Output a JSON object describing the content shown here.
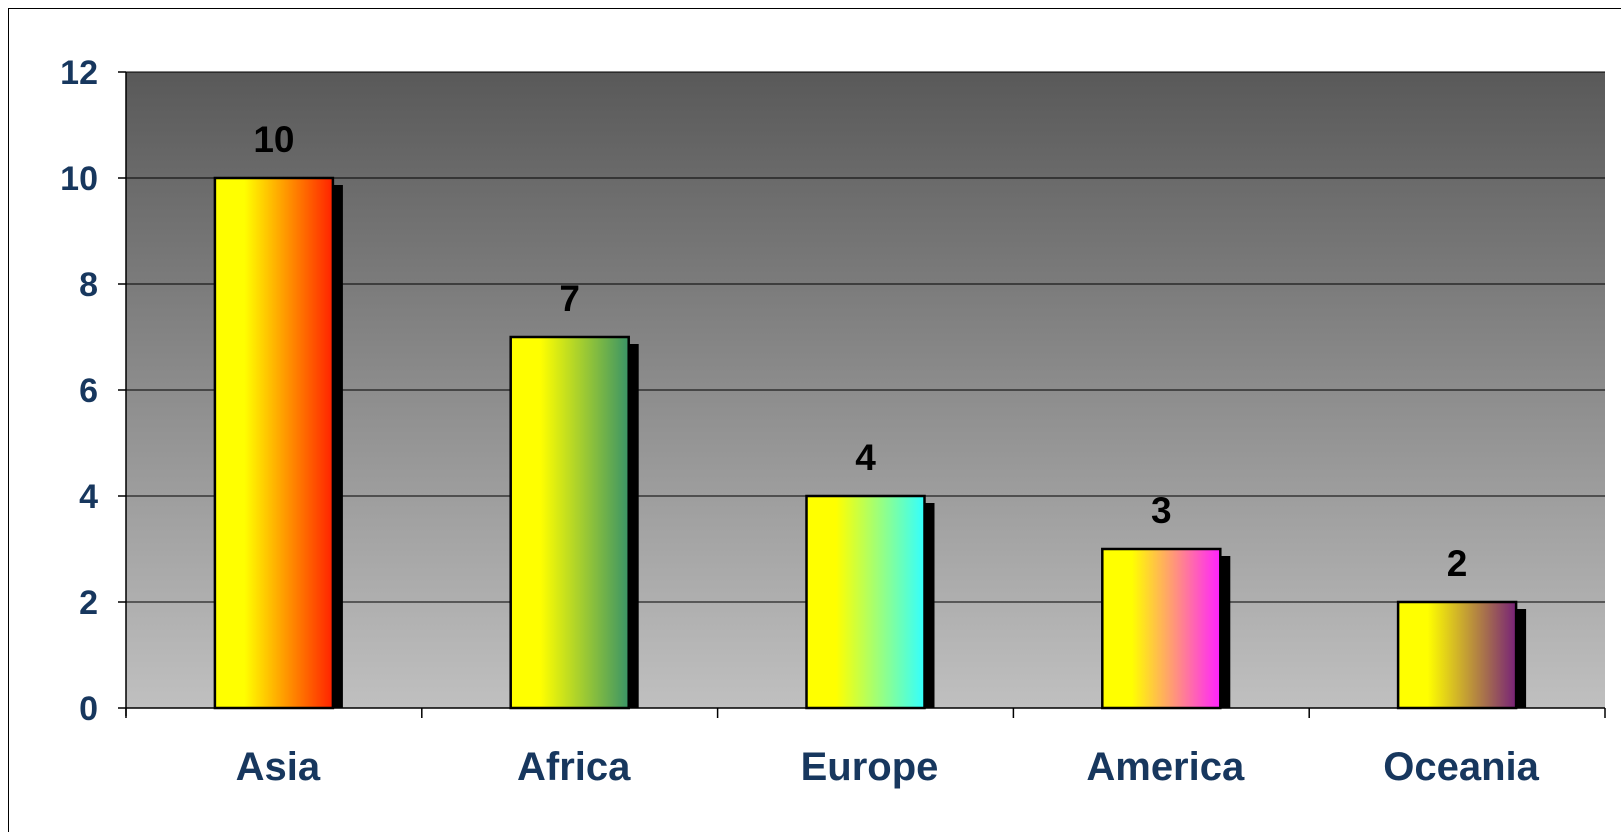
{
  "chart_data": {
    "type": "bar",
    "categories": [
      "Asia",
      "Africa",
      "Europe",
      "America",
      "Oceania"
    ],
    "values": [
      10,
      7,
      4,
      3,
      2
    ],
    "data_labels": [
      "10",
      "7",
      "4",
      "3",
      "2"
    ],
    "ylim": [
      0,
      12
    ],
    "yticks": [
      "0",
      "2",
      "4",
      "6",
      "8",
      "10",
      "12"
    ],
    "title": "",
    "xlabel": "",
    "ylabel": "",
    "grid": true,
    "legend": "none",
    "bar_gradients": [
      [
        "#ffff00",
        "#ff2200"
      ],
      [
        "#ffff00",
        "#3a9466"
      ],
      [
        "#ffff00",
        "#33ffff"
      ],
      [
        "#ffff00",
        "#ff22ff"
      ],
      [
        "#ffff00",
        "#772277"
      ]
    ],
    "plot_background": [
      "#595959",
      "#c0c0c0"
    ],
    "tick_label_color": "#17375e"
  }
}
